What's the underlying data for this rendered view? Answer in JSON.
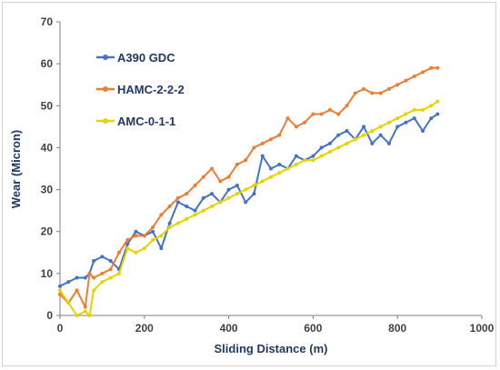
{
  "chart_data": {
    "type": "line",
    "title": "",
    "xlabel": "Sliding Distance (m)",
    "ylabel": "Wear (Micron)",
    "xlim": [
      0,
      1000
    ],
    "ylim": [
      0,
      70
    ],
    "xticks": [
      0,
      200,
      400,
      600,
      800,
      1000
    ],
    "yticks": [
      0,
      10,
      20,
      30,
      40,
      50,
      60,
      70
    ],
    "grid": false,
    "legend_placement": "top-left",
    "series": [
      {
        "name": "A390 GDC",
        "color": "#4472c4",
        "x": [
          0,
          20,
          40,
          60,
          70,
          80,
          100,
          120,
          140,
          160,
          180,
          200,
          220,
          240,
          260,
          280,
          300,
          320,
          340,
          360,
          380,
          400,
          420,
          440,
          460,
          480,
          500,
          520,
          540,
          560,
          580,
          600,
          620,
          640,
          660,
          680,
          700,
          720,
          740,
          760,
          780,
          800,
          820,
          840,
          860,
          880,
          895
        ],
        "y": [
          7,
          8,
          9,
          9,
          10,
          13,
          14,
          13,
          11,
          17,
          20,
          19,
          20,
          16,
          22,
          27,
          26,
          25,
          28,
          29,
          27,
          30,
          31,
          27,
          29,
          38,
          35,
          36,
          35,
          38,
          37,
          38,
          40,
          41,
          43,
          44,
          42,
          45,
          41,
          43,
          41,
          45,
          46,
          47,
          44,
          47,
          48
        ]
      },
      {
        "name": "HAMC-2-2-2",
        "color": "#ed7d31",
        "x": [
          0,
          20,
          40,
          60,
          70,
          80,
          100,
          120,
          140,
          160,
          180,
          200,
          220,
          240,
          260,
          280,
          300,
          320,
          340,
          360,
          380,
          400,
          420,
          440,
          460,
          480,
          500,
          520,
          540,
          560,
          580,
          600,
          620,
          640,
          660,
          680,
          700,
          720,
          740,
          760,
          780,
          800,
          820,
          840,
          860,
          880,
          895
        ],
        "y": [
          5,
          3,
          6,
          2,
          10,
          9,
          10,
          11,
          15,
          18,
          19,
          19,
          21,
          24,
          26,
          28,
          29,
          31,
          33,
          35,
          32,
          33,
          36,
          37,
          40,
          41,
          42,
          43,
          47,
          45,
          46,
          48,
          48,
          49,
          48,
          50,
          53,
          54,
          53,
          53,
          54,
          55,
          56,
          57,
          58,
          59,
          59
        ]
      },
      {
        "name": "AMC-0-1-1",
        "color": "#e6d200",
        "x": [
          0,
          20,
          40,
          60,
          70,
          80,
          100,
          120,
          140,
          160,
          180,
          200,
          220,
          240,
          260,
          280,
          300,
          320,
          340,
          360,
          380,
          400,
          420,
          440,
          460,
          480,
          500,
          520,
          540,
          560,
          580,
          600,
          620,
          640,
          660,
          680,
          700,
          720,
          740,
          760,
          780,
          800,
          820,
          840,
          860,
          880,
          895
        ],
        "y": [
          6,
          3,
          0,
          1,
          0,
          6,
          8,
          9,
          10,
          16,
          15,
          16,
          18,
          19,
          21,
          22,
          23,
          24,
          25,
          26,
          27,
          28,
          29,
          30,
          31,
          32,
          33,
          34,
          35,
          36,
          37,
          37,
          38,
          39,
          40,
          41,
          42,
          43,
          44,
          45,
          46,
          47,
          48,
          49,
          49,
          50,
          51
        ]
      }
    ]
  }
}
